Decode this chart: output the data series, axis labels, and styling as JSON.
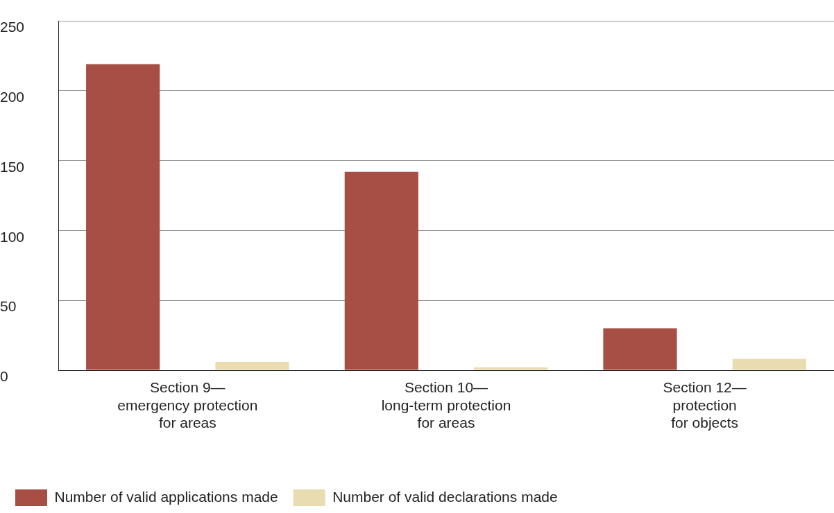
{
  "chart_data": {
    "type": "bar",
    "categories": [
      "Section 9—\nemergency protection\nfor areas",
      "Section 10—\nlong-term protection\nfor areas",
      "Section 12—\nprotection\nfor objects"
    ],
    "series": [
      {
        "name": "Number of valid applications made",
        "color": "#a84f45",
        "values": [
          219,
          142,
          30
        ]
      },
      {
        "name": "Number of valid declarations made",
        "color": "#e8dcb0",
        "values": [
          6,
          2,
          8
        ]
      }
    ],
    "ylim": [
      0,
      250
    ],
    "yticks": [
      0,
      50,
      100,
      150,
      200,
      250
    ],
    "grid": "y",
    "legend": "bottom"
  }
}
